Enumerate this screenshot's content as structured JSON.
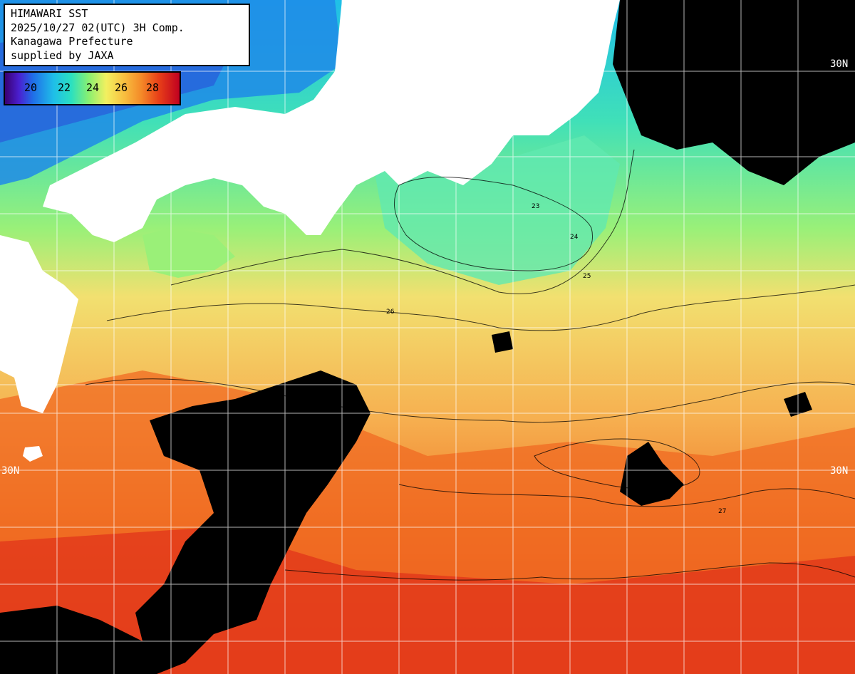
{
  "info": {
    "line1": "HIMAWARI SST",
    "line2": "2025/10/27 02(UTC) 3H Comp.",
    "line3": "Kanagawa Prefecture",
    "line4": "supplied by JAXA"
  },
  "legend": {
    "ticks": [
      "20",
      "22",
      "24",
      "26",
      "28"
    ]
  },
  "latitude_labels": {
    "top_right": "30N",
    "left": "30N",
    "right": "30N"
  },
  "contour_labels": [
    "23",
    "24",
    "25",
    "26",
    "27"
  ],
  "colors": {
    "land": "#ffffff",
    "cloud": "#000000",
    "cold": "#1f6ee8",
    "cool": "#2be0c0",
    "mild": "#8af070",
    "warm": "#f2e070",
    "hot": "#f48a28",
    "hottest": "#e03010"
  }
}
